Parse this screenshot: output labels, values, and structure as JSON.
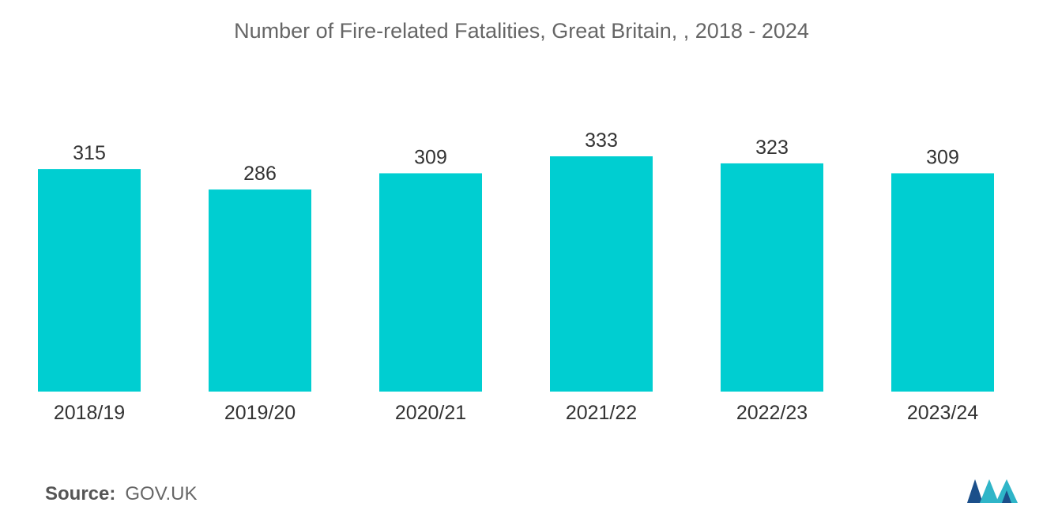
{
  "chart_data": {
    "type": "bar",
    "title": "Number of Fire-related Fatalities, Great Britain, , 2018 - 2024",
    "categories": [
      "2018/19",
      "2019/20",
      "2020/21",
      "2021/22",
      "2022/23",
      "2023/24"
    ],
    "values": [
      315,
      286,
      309,
      333,
      323,
      309
    ],
    "xlabel": "",
    "ylabel": "",
    "ylim": [
      0,
      333
    ],
    "grid": false,
    "bar_color": "#00CED1"
  },
  "source": {
    "label": "Source:",
    "value": "GOV.UK"
  },
  "logo": {
    "icon": "mordor-intelligence-logo-icon",
    "colors": [
      "#1B4F8A",
      "#2FB5C8"
    ]
  }
}
